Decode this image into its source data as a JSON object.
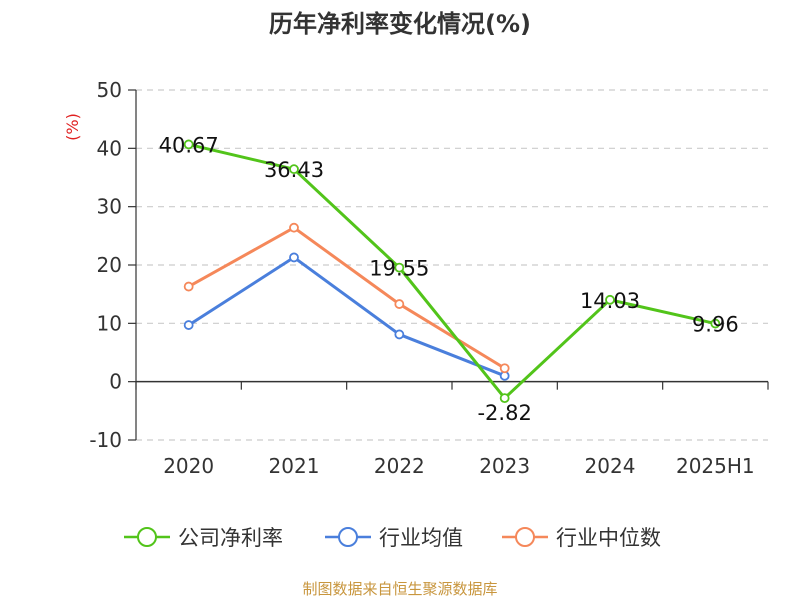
{
  "chart_data": {
    "type": "line",
    "title": "历年净利率变化情况(%)",
    "ylabel": "(%)",
    "xlabel": "",
    "categories": [
      "2020",
      "2021",
      "2022",
      "2023",
      "2024",
      "2025H1"
    ],
    "ylim": [
      -10,
      50
    ],
    "yticks": [
      -10,
      0,
      10,
      20,
      30,
      40,
      50
    ],
    "grid": true,
    "legend_position": "bottom",
    "series": [
      {
        "name": "公司净利率",
        "color": "#52c41a",
        "values": [
          40.67,
          36.43,
          19.55,
          -2.82,
          14.03,
          9.96
        ],
        "labels": [
          "40.67",
          "36.43",
          "19.55",
          "-2.82",
          "14.03",
          "9.96"
        ],
        "show_labels": true
      },
      {
        "name": "行业均值",
        "color": "#4a7fdc",
        "values": [
          9.7,
          21.3,
          8.1,
          1.0,
          null,
          null
        ],
        "show_labels": false
      },
      {
        "name": "行业中位数",
        "color": "#f5885a",
        "values": [
          16.3,
          26.4,
          13.3,
          2.3,
          null,
          null
        ],
        "show_labels": false
      }
    ]
  },
  "source_note": "制图数据来自恒生聚源数据库",
  "colors": {
    "axis_label_color": "#e02020",
    "text_color": "#333333",
    "grid_color": "#cccccc",
    "source_color": "#c8963e"
  }
}
